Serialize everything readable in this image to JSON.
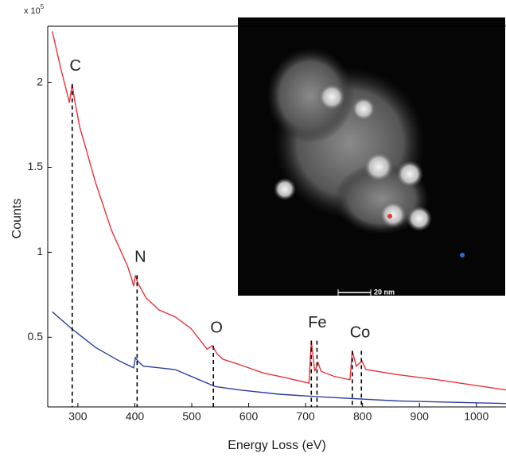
{
  "chart_data": {
    "type": "line",
    "y_multiplier": "x 10",
    "y_multiplier_exp": "5",
    "xlabel": "Energy Loss (eV)",
    "ylabel": "Counts",
    "xlim": [
      247,
      1052
    ],
    "xticks": [
      300,
      400,
      500,
      600,
      700,
      800,
      900,
      1000
    ],
    "ylim": [
      0.09,
      2.33
    ],
    "yticks": [
      0.5,
      1,
      1.5,
      2
    ],
    "series": [
      {
        "color": "#e8323a",
        "x": [
          255,
          270,
          280,
          285,
          290,
          294,
          303,
          331,
          359,
          387,
          394,
          398,
          401,
          405,
          420,
          443,
          471,
          499,
          527,
          536,
          545,
          555,
          583,
          625,
          667,
          706,
          710,
          716,
          722,
          727,
          750,
          778,
          782,
          789,
          799,
          806,
          862,
          932,
          1002,
          1052
        ],
        "values": [
          2.3,
          2.08,
          1.95,
          1.88,
          1.99,
          1.9,
          1.74,
          1.41,
          1.13,
          0.92,
          0.85,
          0.8,
          0.865,
          0.82,
          0.73,
          0.66,
          0.62,
          0.55,
          0.43,
          0.45,
          0.4,
          0.37,
          0.34,
          0.29,
          0.26,
          0.23,
          0.48,
          0.3,
          0.35,
          0.3,
          0.27,
          0.25,
          0.42,
          0.33,
          0.36,
          0.31,
          0.28,
          0.25,
          0.215,
          0.19
        ]
      },
      {
        "color": "#2b3f9e",
        "x": [
          255,
          289,
          331,
          373,
          398,
          401,
          405,
          415,
          443,
          471,
          513,
          541,
          583,
          653,
          723,
          862,
          1052
        ],
        "values": [
          0.65,
          0.55,
          0.44,
          0.36,
          0.32,
          0.38,
          0.36,
          0.33,
          0.32,
          0.31,
          0.25,
          0.21,
          0.19,
          0.165,
          0.15,
          0.125,
          0.11
        ]
      }
    ],
    "edges": [
      {
        "label": "C",
        "x": [
          290
        ],
        "top": 1.99
      },
      {
        "label": "N",
        "x": [
          404
        ],
        "top": 0.865
      },
      {
        "label": "O",
        "x": [
          538
        ],
        "top": 0.45
      },
      {
        "label": "Fe",
        "x": [
          710,
          720
        ],
        "top": 0.48
      },
      {
        "label": "Co",
        "x": [
          782,
          798
        ],
        "top": 0.42
      }
    ],
    "inset_scale": "20 nm"
  }
}
